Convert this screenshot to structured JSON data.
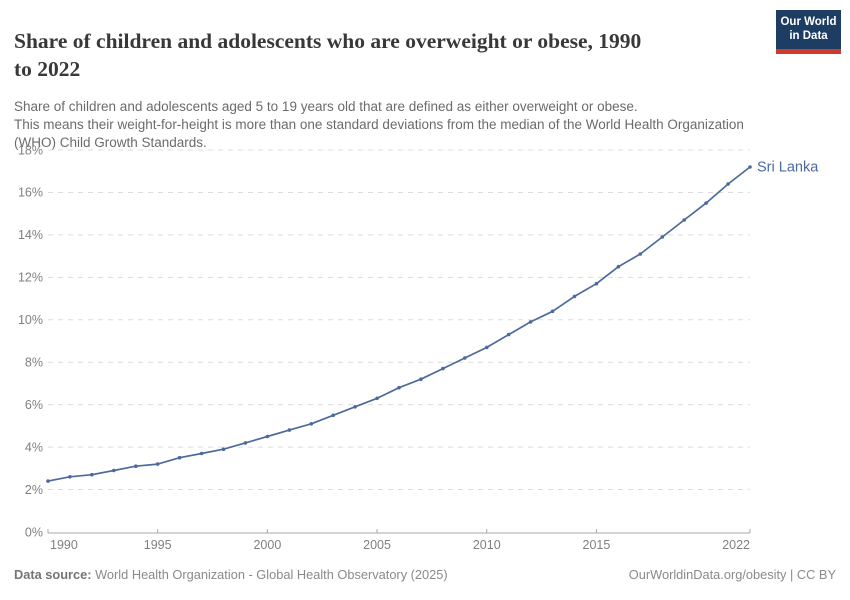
{
  "header": {
    "title_line1": "Share of children and adolescents who are overweight or obese, 1990",
    "title_line2": "to 2022",
    "subtitle_lines": [
      "Share of children and adolescents aged 5 to 19 years old that are defined as either overweight or obese.",
      "This means their weight-for-height is more than one standard deviations from the median of the World Health Organization",
      "(WHO) Child Growth Standards."
    ],
    "logo": {
      "line1": "Our World",
      "line2": "in Data"
    }
  },
  "chart_data": {
    "type": "line",
    "title": "Share of children and adolescents who are overweight or obese, 1990 to 2022",
    "series": [
      {
        "name": "Sri Lanka",
        "x": [
          1990,
          1991,
          1992,
          1993,
          1994,
          1995,
          1996,
          1997,
          1998,
          1999,
          2000,
          2001,
          2002,
          2003,
          2004,
          2005,
          2006,
          2007,
          2008,
          2009,
          2010,
          2011,
          2012,
          2013,
          2014,
          2015,
          2016,
          2017,
          2018,
          2019,
          2020,
          2021,
          2022
        ],
        "values": [
          2.4,
          2.6,
          2.7,
          2.9,
          3.1,
          3.2,
          3.5,
          3.7,
          3.9,
          4.2,
          4.5,
          4.8,
          5.1,
          5.5,
          5.9,
          6.3,
          6.8,
          7.2,
          7.7,
          8.2,
          8.7,
          9.3,
          9.9,
          10.4,
          11.1,
          11.7,
          12.5,
          13.1,
          13.9,
          14.7,
          15.5,
          16.4,
          17.2
        ]
      }
    ],
    "x_ticks": [
      1990,
      1995,
      2000,
      2005,
      2010,
      2015,
      2022
    ],
    "y_ticks": [
      0,
      2,
      4,
      6,
      8,
      10,
      12,
      14,
      16,
      18
    ],
    "y_tick_suffix": "%",
    "xlim": [
      1990,
      2022
    ],
    "ylim": [
      0,
      18
    ],
    "grid": "horizontal-dashed",
    "legend_position": "end-of-line-label",
    "line_color": "#4C6A9C",
    "marker": "dot",
    "tick_label_color": "#808080",
    "gridline_color": "#dcdcdc",
    "axis_line_color": "#a8a8a8"
  },
  "footer": {
    "source_label": "Data source:",
    "source_text": " World Health Organization - Global Health Observatory (2025)",
    "credit": "OurWorldinData.org/obesity | CC BY"
  }
}
